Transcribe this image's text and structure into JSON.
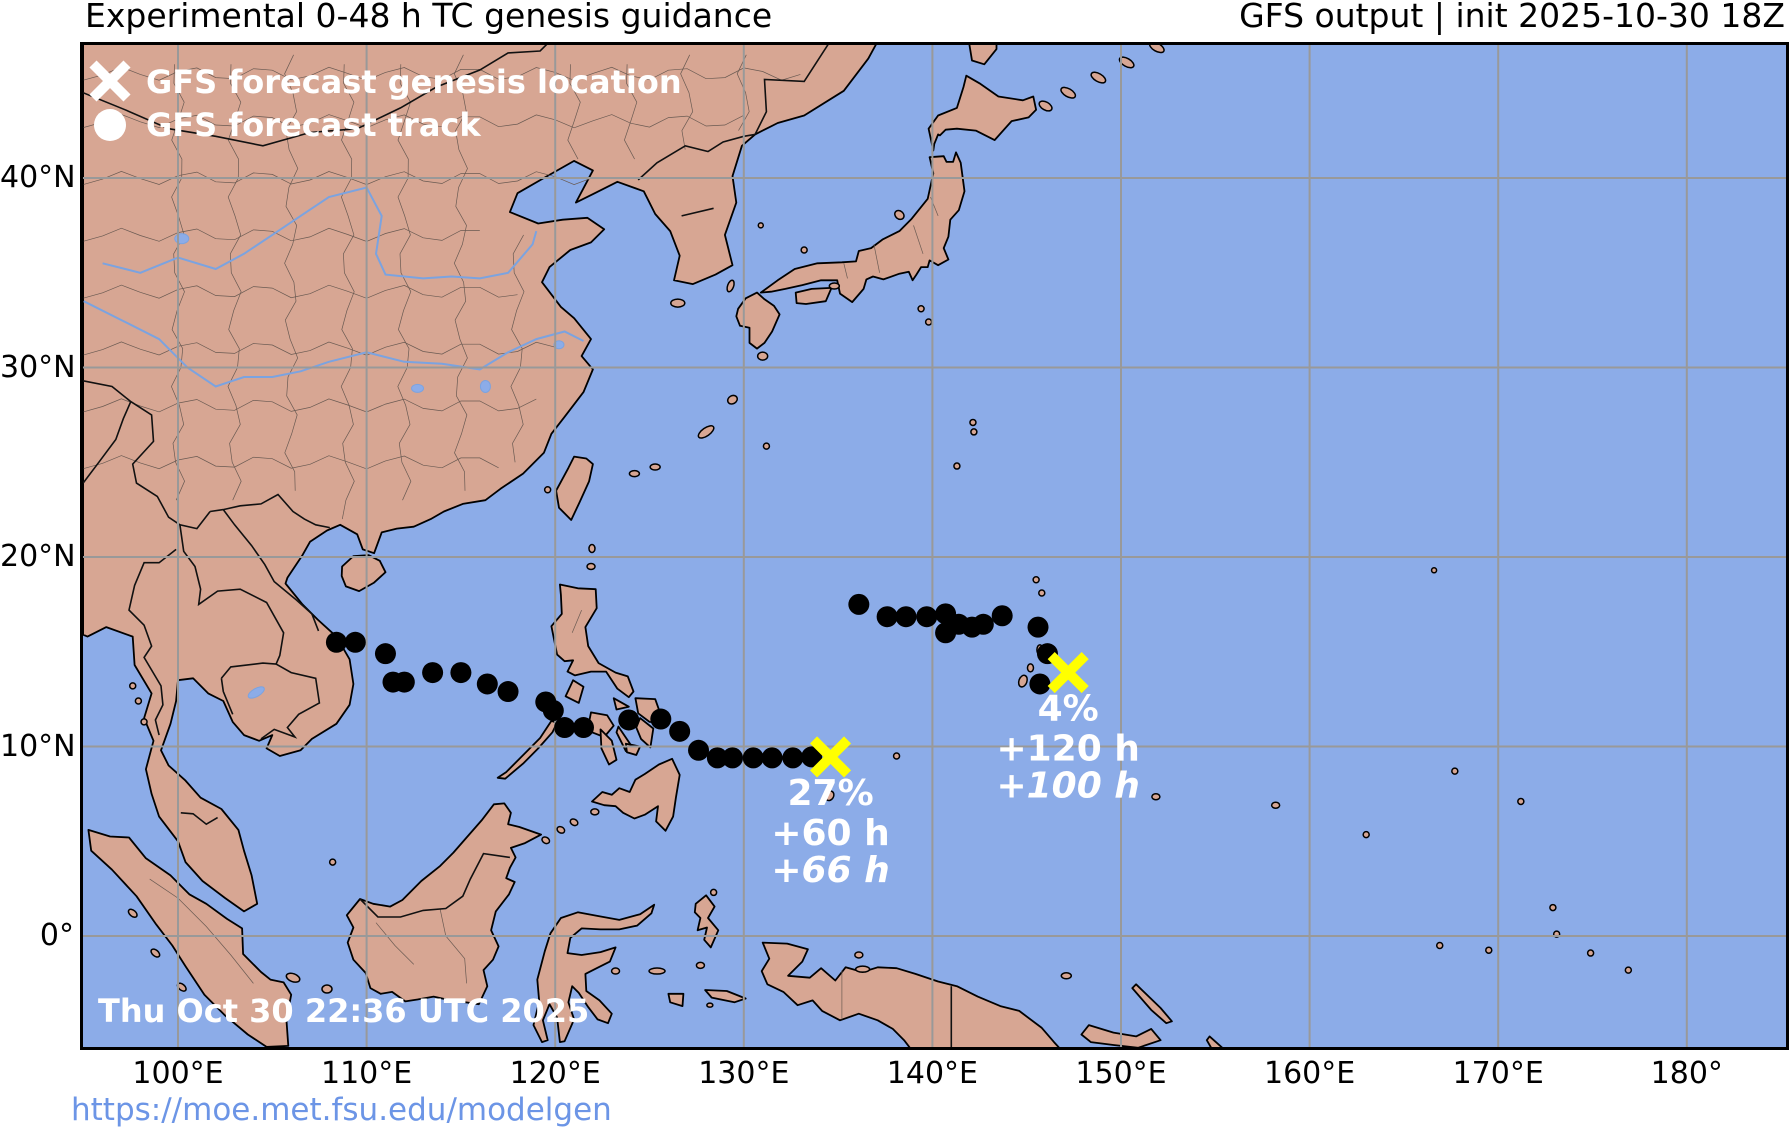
{
  "header": {
    "title_left": "Experimental 0-48 h TC genesis guidance",
    "title_right": "GFS output | init 2025-10-30 18Z"
  },
  "legend": {
    "genesis_marker": "x-marker",
    "genesis_label": "GFS forecast genesis location",
    "track_marker": "dot-marker",
    "track_label": "GFS forecast track"
  },
  "axis": {
    "lat_ticks": [
      {
        "label": "40°N",
        "lat": 40
      },
      {
        "label": "30°N",
        "lat": 30
      },
      {
        "label": "20°N",
        "lat": 20
      },
      {
        "label": "10°N",
        "lat": 10
      },
      {
        "label": "0°",
        "lat": 0
      }
    ],
    "lon_ticks": [
      {
        "label": "100°E",
        "lon": 100
      },
      {
        "label": "110°E",
        "lon": 110
      },
      {
        "label": "120°E",
        "lon": 120
      },
      {
        "label": "130°E",
        "lon": 130
      },
      {
        "label": "140°E",
        "lon": 140
      },
      {
        "label": "150°E",
        "lon": 150
      },
      {
        "label": "160°E",
        "lon": 160
      },
      {
        "label": "170°E",
        "lon": 170
      },
      {
        "label": "180°",
        "lon": 180
      }
    ]
  },
  "footer": {
    "timestamp": "Thu Oct 30 22:36 UTC 2025",
    "url": "https://moe.met.fsu.edu/modelgen"
  },
  "chart_data": {
    "type": "map-tracks",
    "lon_range": [
      95.0,
      185.4
    ],
    "lat_range": [
      -6.0,
      47.4
    ],
    "grid": true,
    "systems": [
      {
        "probability": "27%",
        "genesis_hour_label": "+60 h",
        "track_hour_label": "+66 h",
        "genesis": {
          "lon": 134.6,
          "lat": 9.45
        },
        "track": [
          [
            108.4,
            15.5
          ],
          [
            109.4,
            15.5
          ],
          [
            111.0,
            14.9
          ],
          [
            111.4,
            13.4
          ],
          [
            112.0,
            13.4
          ],
          [
            113.5,
            13.9
          ],
          [
            115.0,
            13.9
          ],
          [
            116.4,
            13.3
          ],
          [
            117.5,
            12.9
          ],
          [
            119.5,
            12.35
          ],
          [
            119.9,
            11.9
          ],
          [
            120.5,
            11.0
          ],
          [
            121.5,
            11.0
          ],
          [
            123.9,
            11.4
          ],
          [
            125.6,
            11.45
          ],
          [
            126.6,
            10.8
          ],
          [
            127.6,
            9.8
          ],
          [
            128.6,
            9.4
          ],
          [
            129.4,
            9.4
          ],
          [
            130.5,
            9.4
          ],
          [
            131.5,
            9.4
          ],
          [
            132.6,
            9.4
          ],
          [
            133.6,
            9.45
          ]
        ]
      },
      {
        "probability": "4%",
        "genesis_hour_label": "+120 h",
        "track_hour_label": "+100 h",
        "genesis": {
          "lon": 147.2,
          "lat": 13.9
        },
        "track": [
          [
            136.1,
            17.5
          ],
          [
            137.6,
            16.85
          ],
          [
            138.6,
            16.85
          ],
          [
            139.7,
            16.85
          ],
          [
            140.7,
            17.0
          ],
          [
            140.7,
            16.0
          ],
          [
            141.4,
            16.45
          ],
          [
            142.1,
            16.3
          ],
          [
            142.7,
            16.45
          ],
          [
            143.7,
            16.9
          ],
          [
            145.6,
            16.3
          ],
          [
            146.1,
            14.9
          ],
          [
            145.7,
            13.3
          ]
        ]
      }
    ]
  },
  "colors": {
    "ocean": "#8cace8",
    "land": "#d7a693",
    "coast": "#000000",
    "grid": "#999999",
    "track_dot": "#000000",
    "genesis_marker": "#ffff00",
    "annotation_text": "#ffffff",
    "url": "#6c95e6",
    "river": "#7ba3e0"
  }
}
